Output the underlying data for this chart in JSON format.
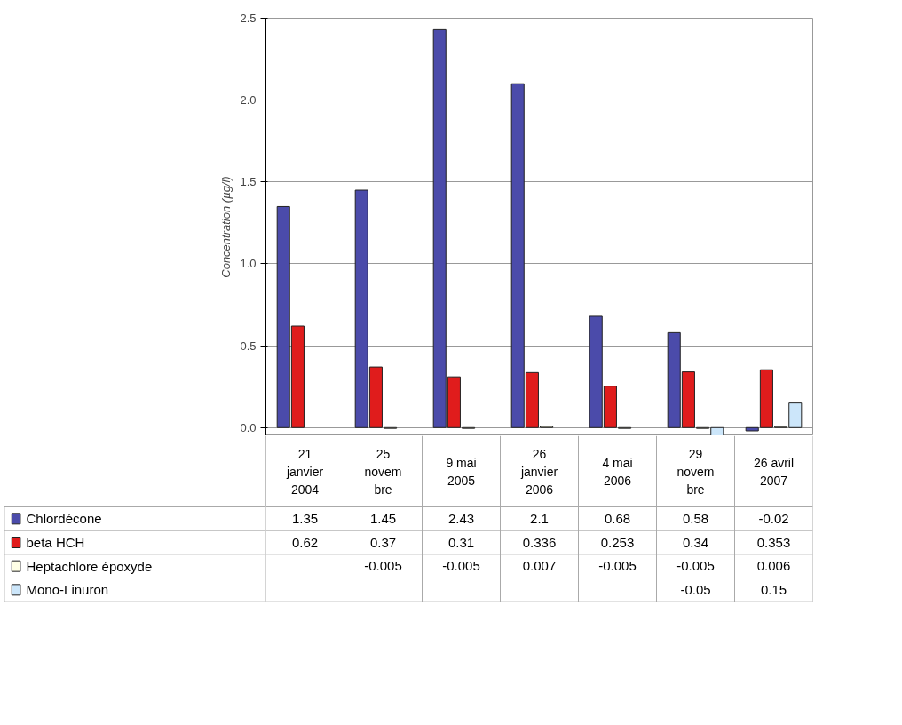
{
  "chart_data": {
    "type": "bar",
    "ylabel": "Concentration (µg/l)",
    "categories": [
      "21\njanvier\n2004",
      "25\nnovem\nbre",
      "9 mai\n2005",
      "26\njanvier\n2006",
      "4 mai\n2006",
      "29\nnovem\nbre",
      "26 avril\n2007"
    ],
    "series": [
      {
        "name": "Chlordécone",
        "color": "#4b4baa",
        "values": [
          1.35,
          1.45,
          2.43,
          2.1,
          0.68,
          0.58,
          -0.02
        ]
      },
      {
        "name": "beta HCH",
        "color": "#e01c1c",
        "values": [
          0.62,
          0.37,
          0.31,
          0.336,
          0.253,
          0.34,
          0.353
        ]
      },
      {
        "name": "Heptachlore époxyde",
        "color": "#ffffe6",
        "values": [
          null,
          -0.005,
          -0.005,
          0.007,
          -0.005,
          -0.005,
          0.006
        ]
      },
      {
        "name": "Mono-Linuron",
        "color": "#cce6fa",
        "values": [
          null,
          null,
          null,
          null,
          null,
          -0.05,
          0.15
        ]
      }
    ],
    "ylim": [
      -0.05,
      2.5
    ],
    "yticks": [
      {
        "value": 0,
        "label": "0.0"
      },
      {
        "value": 0.5,
        "label": "0.5"
      },
      {
        "value": 1,
        "label": "1.0"
      },
      {
        "value": 1.5,
        "label": "1.5"
      },
      {
        "value": 2,
        "label": "2.0"
      },
      {
        "value": 2.5,
        "label": "2.5"
      }
    ],
    "grid": "y",
    "legend": "bottom left",
    "data_labels": true
  }
}
